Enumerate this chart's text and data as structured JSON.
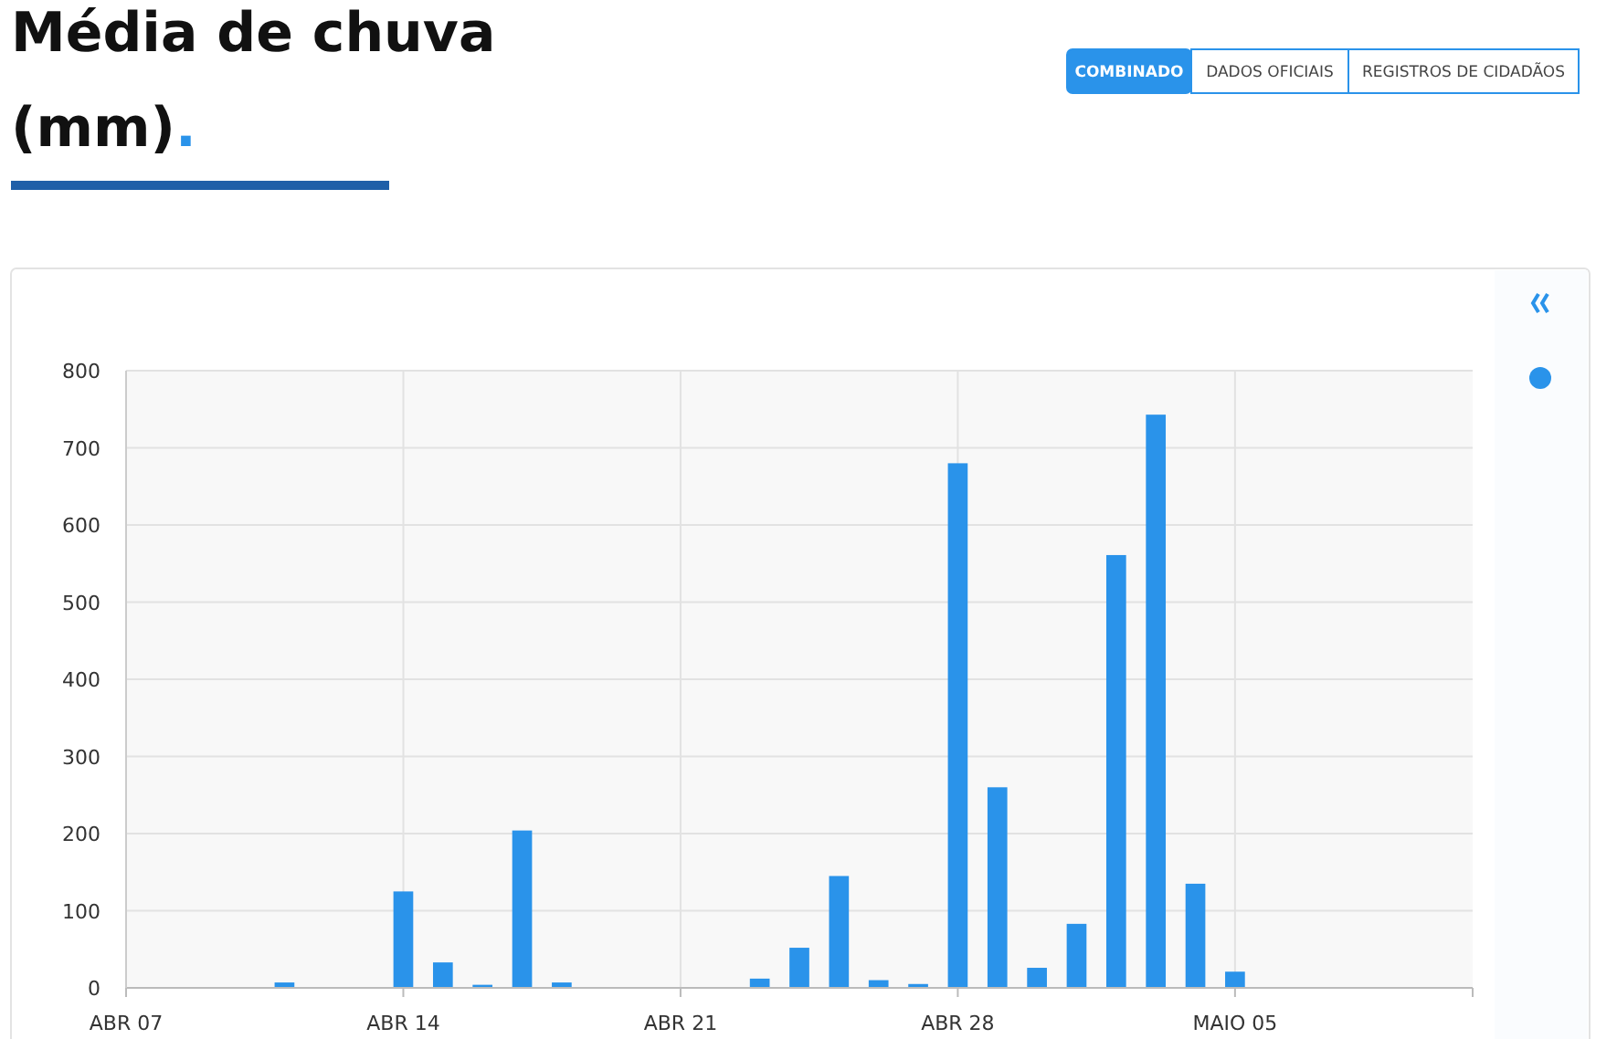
{
  "chart_data": {
    "type": "bar",
    "title": "Média de chuva (mm).",
    "annotations": [
      "COMBINADO",
      "DADOS OFICIAIS",
      "REGISTROS DE CIDADÃOS"
    ],
    "x": [
      "--04-07",
      "--04-08",
      "--04-09",
      "--04-10",
      "--04-11",
      "--04-12",
      "--04-13",
      "--04-14",
      "--04-15",
      "--04-16",
      "--04-17",
      "--04-18",
      "--04-19",
      "--04-20",
      "--04-21",
      "--04-22",
      "--04-23",
      "--04-24",
      "--04-25",
      "--04-26",
      "--04-27",
      "--04-28",
      "--04-29",
      "--04-30",
      "--05-01",
      "--05-02",
      "--05-03",
      "--05-04",
      "--05-05",
      "--05-06",
      "--05-07",
      "--05-08",
      "--05-09",
      "--05-10"
    ],
    "values": [
      0,
      0,
      0,
      0,
      7,
      0,
      0,
      125,
      33,
      4,
      204,
      7,
      0,
      0,
      0,
      0,
      12,
      52,
      145,
      10,
      5,
      680,
      260,
      26,
      83,
      561,
      743,
      135,
      21,
      0,
      0,
      0,
      0,
      0
    ],
    "color": "#2a93ea",
    "xlim": [
      "--04-07",
      "--05-11"
    ],
    "xticks": [
      {
        "value": "--04-07",
        "label": "ABR 07"
      },
      {
        "value": "--04-14",
        "label": "ABR 14"
      },
      {
        "value": "--04-21",
        "label": "ABR 21"
      },
      {
        "value": "--04-28",
        "label": "ABR 28"
      },
      {
        "value": "--05-05",
        "label": "MAIO 05"
      }
    ],
    "ylim": [
      0,
      800
    ],
    "yticks": [
      0,
      100,
      200,
      300,
      400,
      500,
      600,
      700,
      800
    ],
    "grid": true
  }
}
